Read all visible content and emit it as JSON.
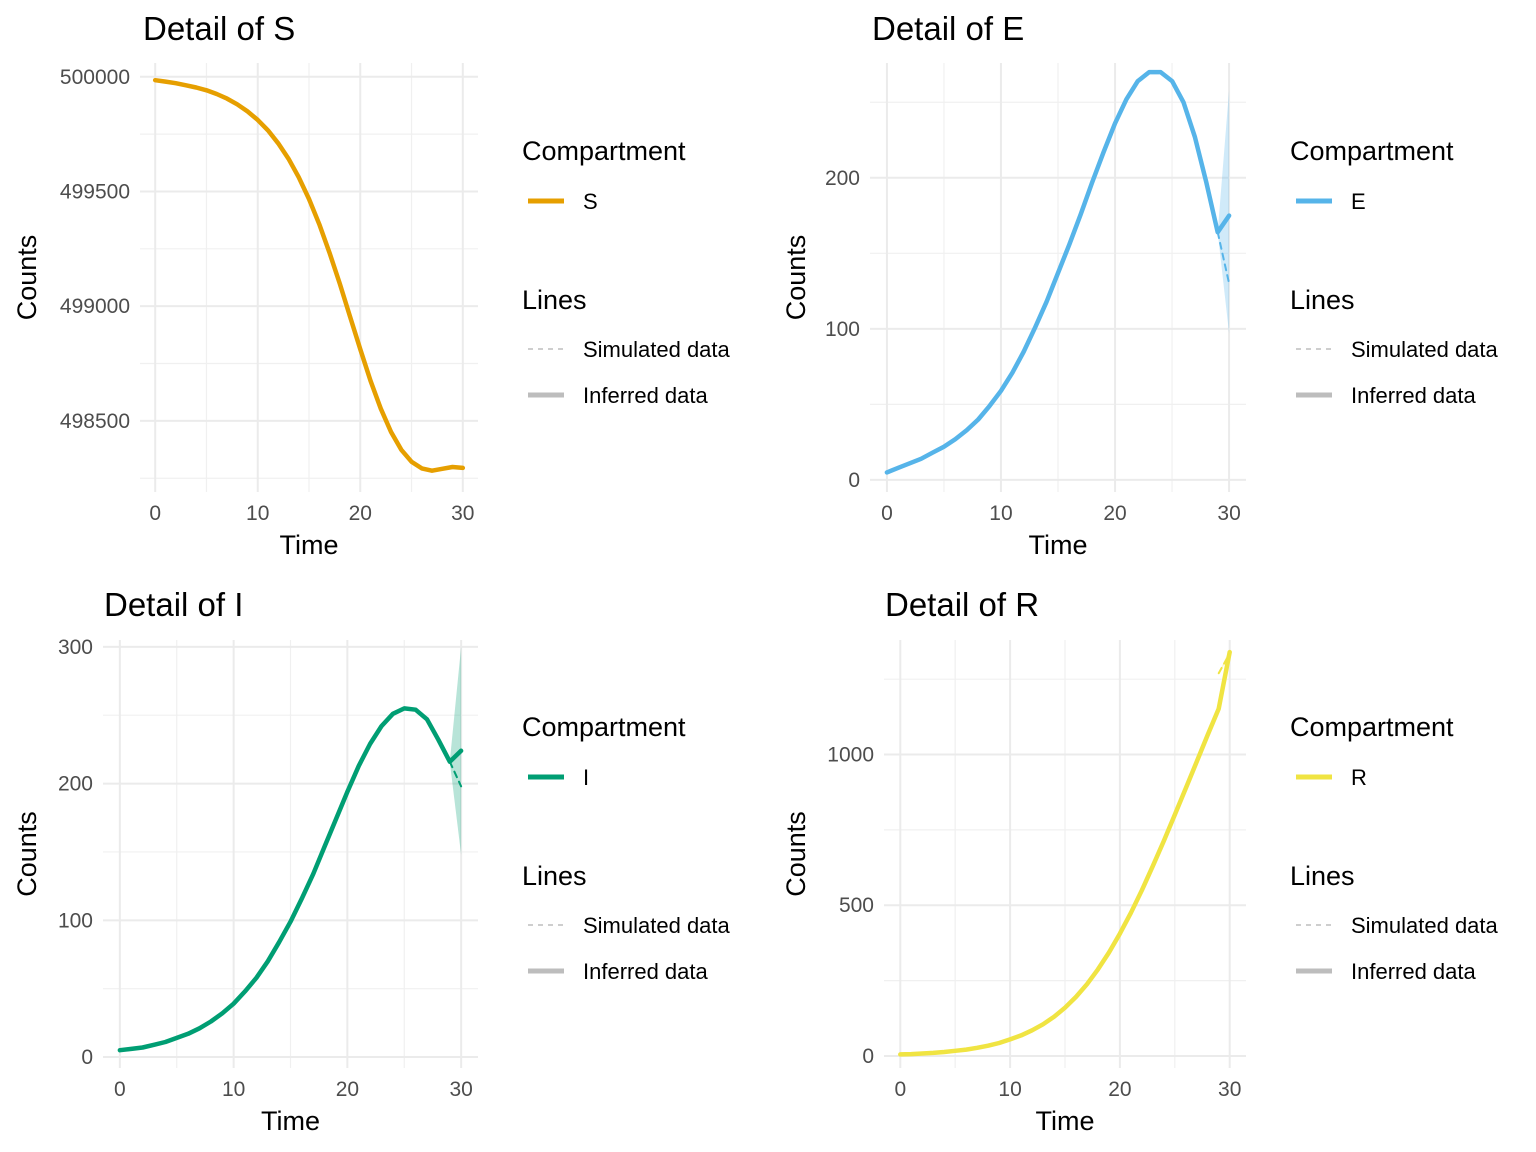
{
  "legend": {
    "compartment_title": "Compartment",
    "lines_title": "Lines",
    "simulated_label": "Simulated data",
    "inferred_label": "Inferred data",
    "line_key_color": "#bdbdbd"
  },
  "chart_data": [
    {
      "type": "line",
      "title": "Detail of S",
      "xlabel": "Time",
      "ylabel": "Counts",
      "compartment": "S",
      "color": "#E69F00",
      "xlim": [
        0,
        30
      ],
      "ylim": [
        498190,
        500060
      ],
      "xticks": [
        0,
        10,
        20,
        30
      ],
      "yticks": [
        498500,
        499000,
        499500,
        500000
      ],
      "grid": true,
      "legend_position": "right",
      "series": [
        {
          "name": "Inferred data",
          "x": [
            0,
            1,
            2,
            3,
            4,
            5,
            6,
            7,
            8,
            9,
            10,
            11,
            12,
            13,
            14,
            15,
            16,
            17,
            18,
            19,
            20,
            21,
            22,
            23,
            24,
            25,
            26,
            27,
            28,
            29,
            30
          ],
          "values": [
            499985,
            499979,
            499972,
            499963,
            499953,
            499941,
            499925,
            499905,
            499880,
            499849,
            499812,
            499766,
            499710,
            499643,
            499562,
            499467,
            499357,
            499233,
            499098,
            498955,
            498812,
            498675,
            498553,
            498452,
            498374,
            498322,
            498293,
            498283,
            498291,
            498299,
            498295
          ]
        },
        {
          "name": "Simulated data",
          "x": [
            29,
            30
          ],
          "values": [
            498299,
            498295
          ]
        }
      ],
      "band": {
        "x": [
          29,
          30
        ],
        "lower": [
          498299,
          498287
        ],
        "upper": [
          498299,
          498303
        ]
      }
    },
    {
      "type": "line",
      "title": "Detail of E",
      "xlabel": "Time",
      "ylabel": "Counts",
      "compartment": "E",
      "color": "#56B4E9",
      "xlim": [
        0,
        30
      ],
      "ylim": [
        -8,
        276
      ],
      "xticks": [
        0,
        10,
        20,
        30
      ],
      "yticks": [
        0,
        100,
        200
      ],
      "grid": true,
      "legend_position": "right",
      "series": [
        {
          "name": "Inferred data",
          "x": [
            0,
            1,
            2,
            3,
            4,
            5,
            6,
            7,
            8,
            9,
            10,
            11,
            12,
            13,
            14,
            15,
            16,
            17,
            18,
            19,
            20,
            21,
            22,
            23,
            24,
            25,
            26,
            27,
            28,
            29,
            30
          ],
          "values": [
            5,
            8,
            11,
            14,
            18,
            22,
            27,
            33,
            40,
            49,
            59,
            71,
            85,
            101,
            118,
            137,
            156,
            176,
            197,
            217,
            236,
            252,
            264,
            270,
            270,
            264,
            250,
            227,
            197,
            164,
            175
          ]
        },
        {
          "name": "Simulated data",
          "x": [
            29,
            30
          ],
          "values": [
            164,
            130
          ]
        }
      ],
      "band": {
        "x": [
          29,
          30
        ],
        "lower": [
          164,
          97
        ],
        "upper": [
          164,
          258
        ]
      }
    },
    {
      "type": "line",
      "title": "Detail of I",
      "xlabel": "Time",
      "ylabel": "Counts",
      "compartment": "I",
      "color": "#009E73",
      "xlim": [
        0,
        30
      ],
      "ylim": [
        -8,
        305
      ],
      "xticks": [
        0,
        10,
        20,
        30
      ],
      "yticks": [
        0,
        100,
        200,
        300
      ],
      "grid": true,
      "legend_position": "right",
      "series": [
        {
          "name": "Inferred data",
          "x": [
            0,
            1,
            2,
            3,
            4,
            5,
            6,
            7,
            8,
            9,
            10,
            11,
            12,
            13,
            14,
            15,
            16,
            17,
            18,
            19,
            20,
            21,
            22,
            23,
            24,
            25,
            26,
            27,
            28,
            29,
            30
          ],
          "values": [
            5,
            6,
            7,
            9,
            11,
            14,
            17,
            21,
            26,
            32,
            39,
            48,
            58,
            70,
            84,
            99,
            116,
            134,
            154,
            174,
            194,
            213,
            229,
            242,
            251,
            255,
            254,
            247,
            232,
            216,
            224
          ]
        },
        {
          "name": "Simulated data",
          "x": [
            29,
            30
          ],
          "values": [
            216,
            198
          ]
        }
      ],
      "band": {
        "x": [
          29,
          30
        ],
        "lower": [
          216,
          148
        ],
        "upper": [
          216,
          300
        ]
      }
    },
    {
      "type": "line",
      "title": "Detail of R",
      "xlabel": "Time",
      "ylabel": "Counts",
      "compartment": "R",
      "color": "#F0E442",
      "xlim": [
        0,
        30
      ],
      "ylim": [
        -40,
        1380
      ],
      "xticks": [
        0,
        10,
        20,
        30
      ],
      "yticks": [
        0,
        500,
        1000
      ],
      "grid": true,
      "legend_position": "right",
      "series": [
        {
          "name": "Inferred data",
          "x": [
            0,
            1,
            2,
            3,
            4,
            5,
            6,
            7,
            8,
            9,
            10,
            11,
            12,
            13,
            14,
            15,
            16,
            17,
            18,
            19,
            20,
            21,
            22,
            23,
            24,
            25,
            26,
            27,
            28,
            29,
            30
          ],
          "values": [
            5,
            6,
            8,
            10,
            13,
            17,
            21,
            27,
            34,
            43,
            55,
            68,
            85,
            105,
            130,
            160,
            196,
            238,
            287,
            343,
            406,
            475,
            550,
            630,
            713,
            800,
            888,
            977,
            1065,
            1152,
            1340
          ]
        },
        {
          "name": "Simulated data",
          "x": [
            29,
            30
          ],
          "values": [
            1270,
            1335
          ]
        }
      ],
      "band": {
        "x": [
          29,
          30
        ],
        "lower": [
          1270,
          1325
        ],
        "upper": [
          1270,
          1350
        ]
      }
    }
  ]
}
